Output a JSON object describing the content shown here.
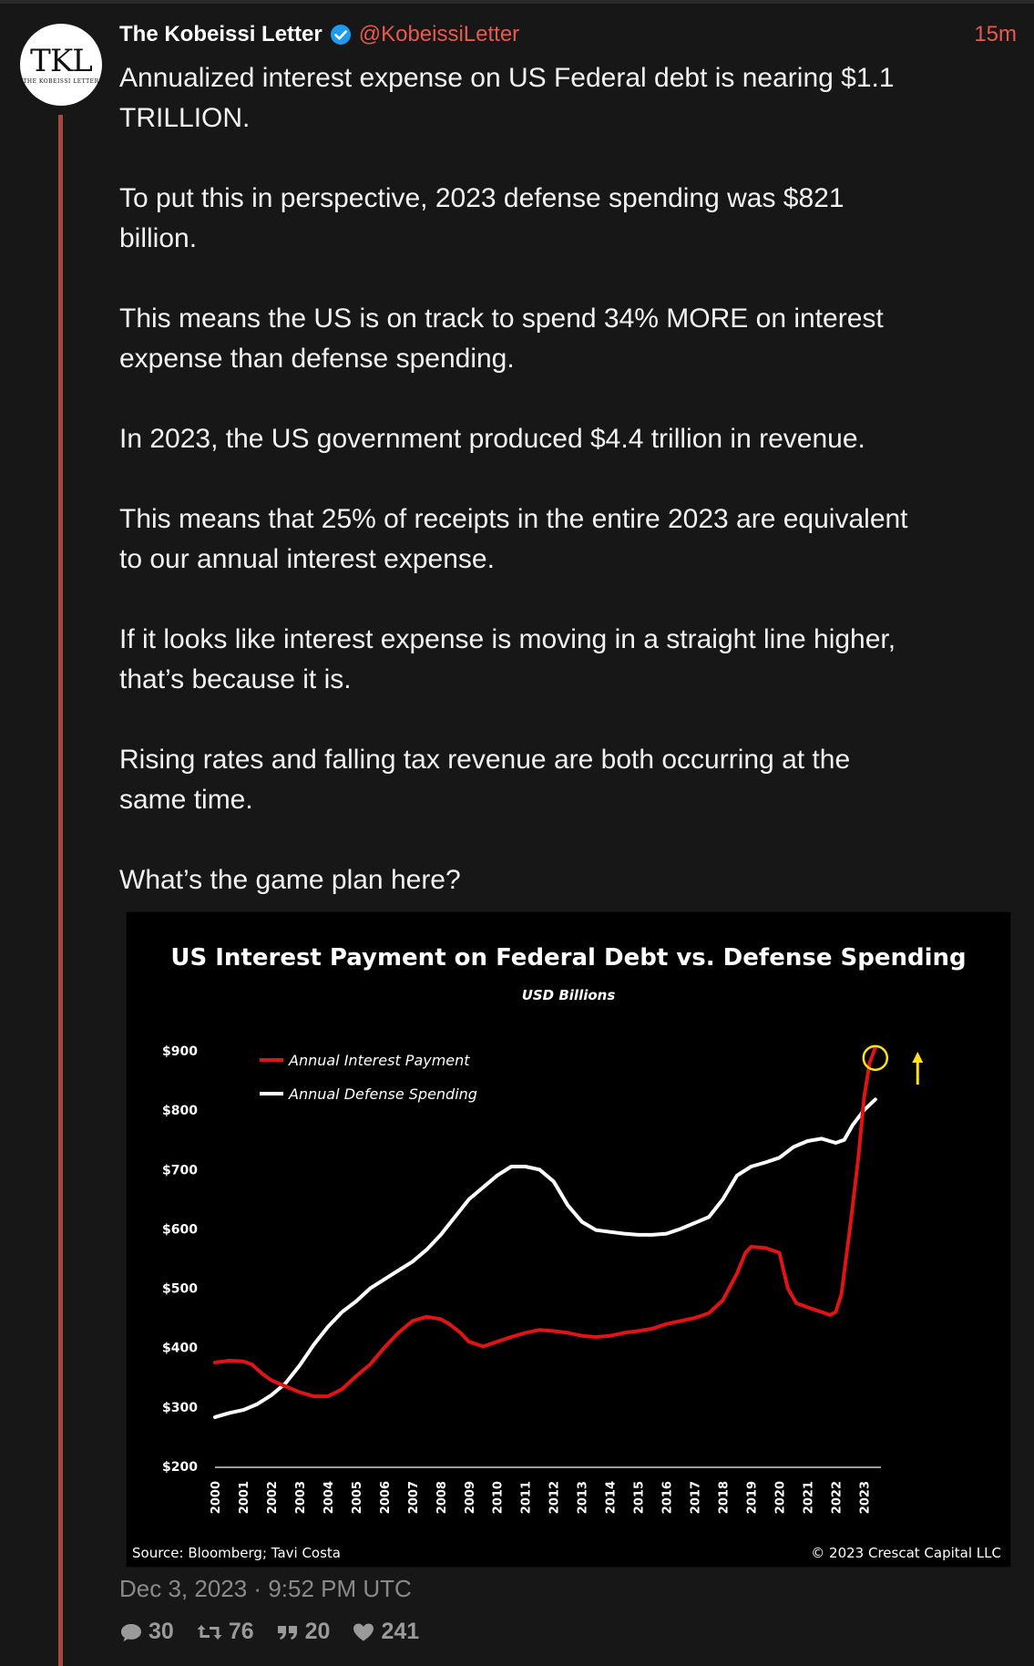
{
  "post": {
    "author_name": "The Kobeissi Letter",
    "handle": "@KobeissiLetter",
    "time_ago": "15m",
    "avatar_text": "TKL",
    "avatar_subtext": "THE KOBEISSI LETTER",
    "paragraphs": [
      "Annualized interest expense on US Federal debt is nearing $1.1\nTRILLION.",
      "To put this in perspective, 2023 defense spending was $821\nbillion.",
      "This means the US is on track to spend 34% MORE on interest\nexpense than defense spending.",
      "In 2023, the US government produced $4.4 trillion in revenue.",
      "This means that 25% of receipts in the entire 2023 are equivalent\nto our annual interest expense.",
      "If it looks like interest expense is moving in a straight line higher,\nthat’s because it is.",
      "Rising rates and falling tax revenue are both occurring at the\nsame time.",
      "What’s the game plan here?"
    ],
    "date_time": "Dec 3, 2023 · 9:52 PM UTC",
    "stats": {
      "replies": "30",
      "retweets": "76",
      "quotes": "20",
      "likes": "241"
    }
  },
  "colors": {
    "background": "#171717",
    "accent": "#e8594e",
    "thread_line": "#a8483f",
    "interest_series": "#e01414",
    "defense_series": "#ffffff",
    "highlight": "#ffe21a"
  },
  "chart_data": {
    "type": "line",
    "title": "US Interest Payment on Federal Debt vs. Defense Spending",
    "subtitle": "USD Billions",
    "xlabel": "",
    "ylabel": "",
    "ylim": [
      200,
      900
    ],
    "y_ticks": [
      200,
      300,
      400,
      500,
      600,
      700,
      800,
      900
    ],
    "y_tick_labels": [
      "$200",
      "$300",
      "$400",
      "$500",
      "$600",
      "$700",
      "$800",
      "$900"
    ],
    "x_ticks": [
      "2000",
      "2001",
      "2002",
      "2003",
      "2004",
      "2005",
      "2006",
      "2007",
      "2008",
      "2009",
      "2010",
      "2011",
      "2012",
      "2013",
      "2014",
      "2015",
      "2016",
      "2017",
      "2018",
      "2019",
      "2020",
      "2021",
      "2022",
      "2023"
    ],
    "xlim": [
      2000,
      2023.6
    ],
    "legend_position": "top-left",
    "source": "Source: Bloomberg; Tavi Costa",
    "copyright": "© 2023 Crescat Capital LLC",
    "grid": false,
    "series": [
      {
        "name": "Annual Interest Payment",
        "color": "#e01414",
        "points": [
          [
            2000,
            375
          ],
          [
            2000.5,
            378
          ],
          [
            2001,
            377
          ],
          [
            2001.3,
            372
          ],
          [
            2001.7,
            355
          ],
          [
            2002,
            345
          ],
          [
            2002.5,
            335
          ],
          [
            2003,
            325
          ],
          [
            2003.5,
            318
          ],
          [
            2004,
            318
          ],
          [
            2004.5,
            330
          ],
          [
            2005,
            352
          ],
          [
            2005.5,
            372
          ],
          [
            2006,
            400
          ],
          [
            2006.5,
            425
          ],
          [
            2007,
            445
          ],
          [
            2007.5,
            452
          ],
          [
            2008,
            448
          ],
          [
            2008.3,
            440
          ],
          [
            2008.7,
            425
          ],
          [
            2009,
            410
          ],
          [
            2009.5,
            402
          ],
          [
            2010,
            410
          ],
          [
            2010.5,
            418
          ],
          [
            2011,
            425
          ],
          [
            2011.5,
            430
          ],
          [
            2012,
            428
          ],
          [
            2012.5,
            425
          ],
          [
            2013,
            420
          ],
          [
            2013.5,
            418
          ],
          [
            2014,
            420
          ],
          [
            2014.5,
            425
          ],
          [
            2015,
            428
          ],
          [
            2015.5,
            432
          ],
          [
            2016,
            440
          ],
          [
            2016.5,
            445
          ],
          [
            2017,
            450
          ],
          [
            2017.5,
            458
          ],
          [
            2018,
            480
          ],
          [
            2018.5,
            525
          ],
          [
            2018.8,
            560
          ],
          [
            2019,
            570
          ],
          [
            2019.5,
            568
          ],
          [
            2020,
            560
          ],
          [
            2020.3,
            500
          ],
          [
            2020.6,
            475
          ],
          [
            2021,
            468
          ],
          [
            2021.5,
            460
          ],
          [
            2021.8,
            455
          ],
          [
            2022,
            460
          ],
          [
            2022.2,
            490
          ],
          [
            2022.5,
            600
          ],
          [
            2022.8,
            720
          ],
          [
            2023,
            820
          ],
          [
            2023.2,
            880
          ],
          [
            2023.4,
            905
          ]
        ]
      },
      {
        "name": "Annual Defense Spending",
        "color": "#ffffff",
        "points": [
          [
            2000,
            283
          ],
          [
            2000.5,
            290
          ],
          [
            2001,
            295
          ],
          [
            2001.5,
            305
          ],
          [
            2002,
            320
          ],
          [
            2002.5,
            340
          ],
          [
            2003,
            370
          ],
          [
            2003.5,
            405
          ],
          [
            2004,
            435
          ],
          [
            2004.5,
            460
          ],
          [
            2005,
            478
          ],
          [
            2005.5,
            500
          ],
          [
            2006,
            515
          ],
          [
            2006.5,
            530
          ],
          [
            2007,
            545
          ],
          [
            2007.5,
            565
          ],
          [
            2008,
            590
          ],
          [
            2008.5,
            620
          ],
          [
            2009,
            650
          ],
          [
            2009.5,
            670
          ],
          [
            2010,
            690
          ],
          [
            2010.5,
            705
          ],
          [
            2011,
            705
          ],
          [
            2011.5,
            700
          ],
          [
            2012,
            680
          ],
          [
            2012.5,
            640
          ],
          [
            2013,
            612
          ],
          [
            2013.5,
            598
          ],
          [
            2014,
            595
          ],
          [
            2014.5,
            592
          ],
          [
            2015,
            590
          ],
          [
            2015.5,
            590
          ],
          [
            2016,
            592
          ],
          [
            2016.5,
            600
          ],
          [
            2017,
            610
          ],
          [
            2017.5,
            620
          ],
          [
            2018,
            650
          ],
          [
            2018.5,
            690
          ],
          [
            2019,
            705
          ],
          [
            2019.5,
            712
          ],
          [
            2020,
            720
          ],
          [
            2020.5,
            738
          ],
          [
            2021,
            748
          ],
          [
            2021.5,
            752
          ],
          [
            2022,
            745
          ],
          [
            2022.3,
            750
          ],
          [
            2022.6,
            775
          ],
          [
            2023,
            800
          ],
          [
            2023.4,
            818
          ]
        ]
      }
    ],
    "annotations": [
      {
        "type": "circle",
        "x": 2023.4,
        "y": 888,
        "color": "#ffe21a"
      },
      {
        "type": "arrow",
        "x": 2024.9,
        "y": 880,
        "direction": "up",
        "color": "#ffe21a"
      }
    ]
  }
}
